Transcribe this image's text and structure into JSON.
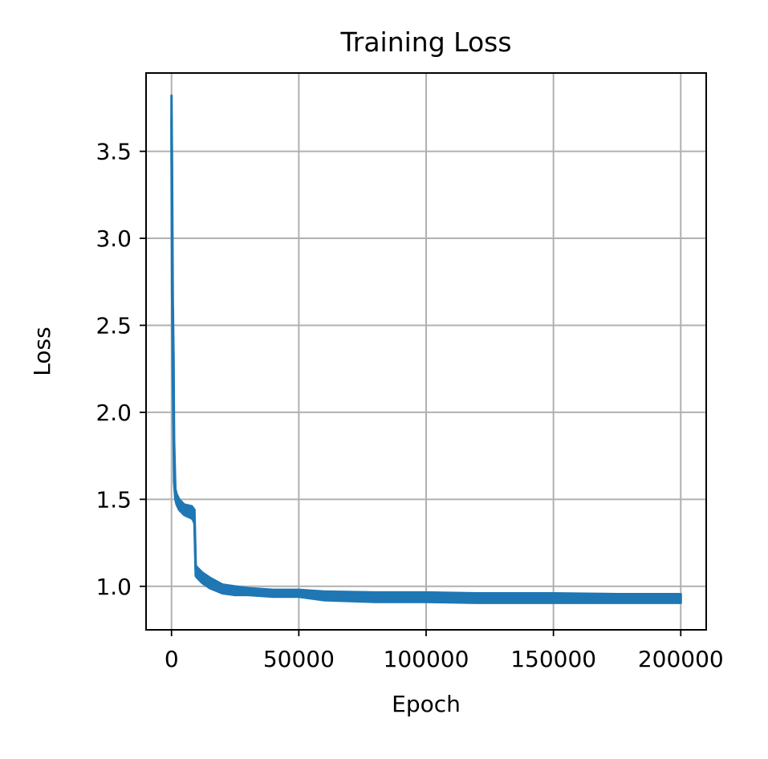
{
  "chart_data": {
    "type": "line",
    "title": "Training Loss",
    "xlabel": "Epoch",
    "ylabel": "Loss",
    "xlim": [
      -10000,
      210000
    ],
    "ylim": [
      0.75,
      3.95
    ],
    "x_ticks": [
      0,
      50000,
      100000,
      150000,
      200000
    ],
    "y_ticks": [
      1.0,
      1.5,
      2.0,
      2.5,
      3.0,
      3.5
    ],
    "x_tick_labels": [
      "0",
      "50000",
      "100000",
      "150000",
      "200000"
    ],
    "y_tick_labels": [
      "1.0",
      "1.5",
      "2.0",
      "2.5",
      "3.0",
      "3.5"
    ],
    "grid": true,
    "series": [
      {
        "color": "#1f77b4",
        "x": [
          0,
          200,
          500,
          800,
          1000,
          1500,
          2000,
          3000,
          5000,
          8000,
          8500,
          9000,
          9500,
          10000,
          12000,
          15000,
          20000,
          25000,
          30000,
          40000,
          50000,
          60000,
          80000,
          100000,
          120000,
          150000,
          175000,
          200000
        ],
        "lower": [
          3.55,
          2.7,
          2.2,
          1.85,
          1.6,
          1.5,
          1.47,
          1.44,
          1.41,
          1.39,
          1.38,
          1.36,
          1.06,
          1.05,
          1.02,
          0.99,
          0.96,
          0.95,
          0.95,
          0.94,
          0.94,
          0.92,
          0.91,
          0.91,
          0.905,
          0.905,
          0.905,
          0.905
        ],
        "upper": [
          3.82,
          3.4,
          2.65,
          2.3,
          1.85,
          1.56,
          1.53,
          1.5,
          1.47,
          1.46,
          1.45,
          1.44,
          1.12,
          1.11,
          1.08,
          1.05,
          1.01,
          1.0,
          0.99,
          0.98,
          0.98,
          0.97,
          0.965,
          0.965,
          0.96,
          0.96,
          0.955,
          0.955
        ]
      }
    ]
  }
}
